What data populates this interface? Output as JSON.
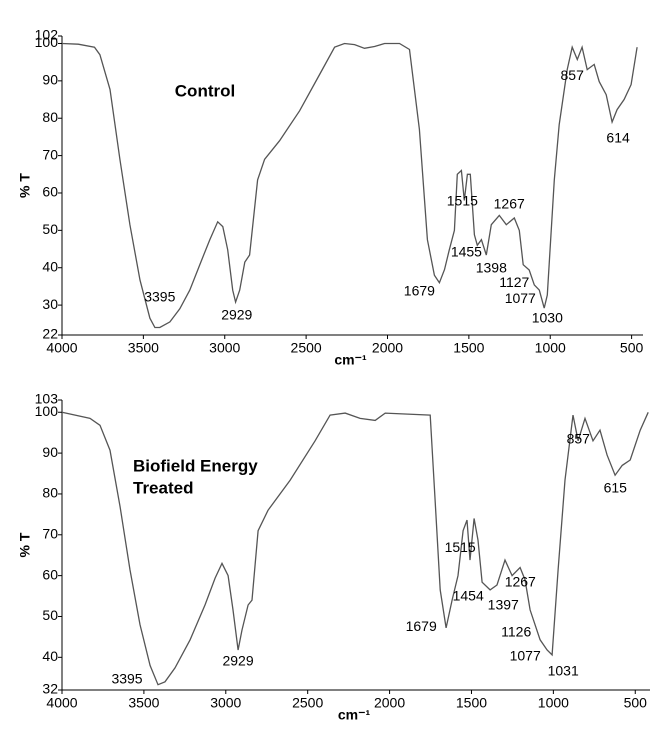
{
  "chart_data": [
    {
      "type": "line",
      "title": [
        "Control"
      ],
      "xlabel": "cm⁻¹",
      "ylabel": "% T",
      "xlim": [
        4000,
        430
      ],
      "ylim": [
        22,
        102
      ],
      "xticks": [
        4000,
        3500,
        3000,
        2500,
        2000,
        1500,
        1000,
        500
      ],
      "yticks": [
        22,
        30,
        40,
        50,
        60,
        70,
        80,
        90,
        100,
        102
      ],
      "color": "#555555",
      "x": [
        4000,
        3900,
        3800,
        3767,
        3705,
        3644,
        3583,
        3521,
        3460,
        3429,
        3399,
        3337,
        3276,
        3215,
        3153,
        3092,
        3043,
        3012,
        2982,
        2951,
        2933,
        2908,
        2877,
        2847,
        2798,
        2755,
        2663,
        2540,
        2417,
        2325,
        2264,
        2202,
        2141,
        2080,
        2018,
        1926,
        1865,
        1804,
        1755,
        1712,
        1681,
        1650,
        1620,
        1589,
        1571,
        1546,
        1528,
        1509,
        1491,
        1466,
        1448,
        1423,
        1393,
        1362,
        1313,
        1270,
        1221,
        1190,
        1166,
        1129,
        1098,
        1067,
        1037,
        1018,
        975,
        945,
        896,
        865,
        834,
        804,
        773,
        730,
        699,
        656,
        620,
        589,
        546,
        503,
        466
      ],
      "values": [
        100,
        99.8,
        99,
        97,
        87.7,
        69,
        51.5,
        36.7,
        26.5,
        24,
        24,
        25.5,
        29,
        34,
        40.8,
        47.5,
        52.3,
        51,
        44.8,
        34,
        30.8,
        34,
        41.5,
        43.4,
        63.5,
        69,
        74,
        82,
        91.7,
        99,
        100,
        99.7,
        98.7,
        99.2,
        100,
        100,
        98.4,
        77,
        47.5,
        38,
        36,
        39.5,
        44.8,
        50,
        65,
        66,
        58,
        65,
        65,
        48.8,
        46,
        47.5,
        43.4,
        51.5,
        54,
        51.5,
        53.3,
        50,
        40.8,
        39.4,
        35.4,
        34,
        29.2,
        32.7,
        63.5,
        78.3,
        93,
        99,
        95.7,
        99,
        93,
        94.4,
        89.8,
        86.3,
        79,
        82.3,
        85,
        89,
        99
      ],
      "annotations": [
        {
          "text": "3395",
          "x": 3399,
          "y": 31.9
        },
        {
          "text": "2929",
          "x": 2926,
          "y": 27.1
        },
        {
          "text": "1679",
          "x": 1804,
          "y": 33.5
        },
        {
          "text": "1515",
          "x": 1540,
          "y": 57.6
        },
        {
          "text": "1455",
          "x": 1515,
          "y": 44
        },
        {
          "text": "1398",
          "x": 1362,
          "y": 39.7
        },
        {
          "text": "1267",
          "x": 1252,
          "y": 56.8
        },
        {
          "text": "1127",
          "x": 1221,
          "y": 35.9
        },
        {
          "text": "1077",
          "x": 1184,
          "y": 31.6
        },
        {
          "text": "1030",
          "x": 1018,
          "y": 26.3
        },
        {
          "text": "857",
          "x": 865,
          "y": 91.2
        },
        {
          "text": "614",
          "x": 583,
          "y": 74.5
        }
      ]
    },
    {
      "type": "line",
      "title": [
        "Biofield Energy",
        "Treated"
      ],
      "xlabel": "cm⁻¹",
      "ylabel": "% T",
      "xlim": [
        4000,
        410
      ],
      "ylim": [
        32,
        103
      ],
      "xticks": [
        4000,
        3500,
        3000,
        2500,
        2000,
        1500,
        1000,
        500
      ],
      "yticks": [
        32,
        40,
        50,
        60,
        70,
        80,
        90,
        100,
        103
      ],
      "color": "#555555",
      "x": [
        4000,
        3829,
        3768,
        3707,
        3646,
        3585,
        3524,
        3462,
        3414,
        3371,
        3310,
        3218,
        3127,
        3065,
        3023,
        2986,
        2956,
        2925,
        2901,
        2864,
        2840,
        2803,
        2742,
        2607,
        2455,
        2363,
        2271,
        2180,
        2088,
        2027,
        1752,
        1722,
        1691,
        1655,
        1618,
        1582,
        1551,
        1527,
        1509,
        1484,
        1460,
        1435,
        1386,
        1344,
        1295,
        1252,
        1203,
        1173,
        1142,
        1112,
        1081,
        1038,
        1008,
        971,
        929,
        880,
        849,
        807,
        758,
        715,
        672,
        623,
        580,
        531,
        470,
        421
      ],
      "values": [
        100,
        98.5,
        96.8,
        90.7,
        77,
        61.4,
        48,
        38,
        33.3,
        34,
        37.4,
        44.3,
        52.8,
        59.4,
        63,
        60,
        51.6,
        41.8,
        46.7,
        52.8,
        54,
        71,
        76,
        83.4,
        93,
        99.3,
        99.8,
        98.5,
        98,
        99.8,
        99.3,
        78.5,
        56.5,
        47.2,
        54,
        60,
        71,
        73.6,
        63.8,
        74,
        68.7,
        58.4,
        56.5,
        57.7,
        63.8,
        60,
        62,
        59,
        51.6,
        48,
        44.3,
        41.8,
        40.6,
        61.4,
        83.4,
        99.3,
        93,
        98.5,
        93,
        95.6,
        89.5,
        84.6,
        87,
        88.3,
        95.6,
        100
      ],
      "annotations": [
        {
          "text": "3395",
          "x": 3603,
          "y": 34.5
        },
        {
          "text": "2929",
          "x": 2925,
          "y": 38.9
        },
        {
          "text": "1679",
          "x": 1807,
          "y": 47.4
        },
        {
          "text": "1515",
          "x": 1569,
          "y": 66.7
        },
        {
          "text": "1454",
          "x": 1520,
          "y": 54.8
        },
        {
          "text": "1397",
          "x": 1306,
          "y": 52.6
        },
        {
          "text": "1267",
          "x": 1202,
          "y": 58.2
        },
        {
          "text": "1126",
          "x": 1227,
          "y": 46
        },
        {
          "text": "1077",
          "x": 1172,
          "y": 40.1
        },
        {
          "text": "1031",
          "x": 940,
          "y": 36.4
        },
        {
          "text": "857",
          "x": 848,
          "y": 93.2
        },
        {
          "text": "615",
          "x": 622,
          "y": 81.2
        }
      ]
    }
  ]
}
